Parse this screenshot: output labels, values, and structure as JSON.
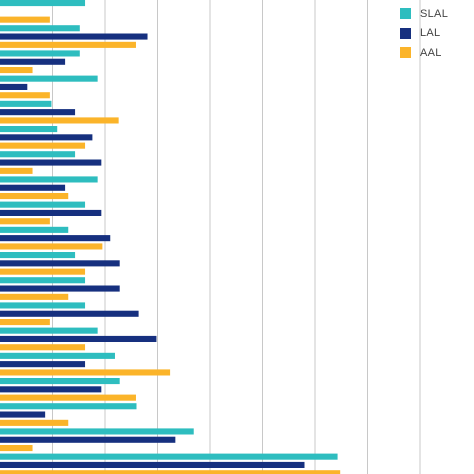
{
  "chart_data": {
    "type": "bar",
    "orientation": "horizontal",
    "title": "",
    "xlabel": "",
    "ylabel": "",
    "xlim": [
      0,
      8
    ],
    "grid": true,
    "legend_position": "top-right",
    "categories": [
      "",
      "",
      "",
      "",
      "",
      "",
      "",
      "",
      "",
      "",
      "",
      "",
      "",
      "",
      "",
      "",
      "",
      "",
      ""
    ],
    "series": [
      {
        "name": "SLAL",
        "color": "#2ebdbf",
        "values": [
          1.62,
          1.52,
          1.52,
          1.86,
          0.98,
          1.09,
          1.43,
          1.86,
          1.62,
          1.3,
          1.43,
          1.62,
          1.62,
          1.86,
          2.19,
          2.28,
          2.6,
          3.69,
          6.43
        ]
      },
      {
        "name": "LAL",
        "color": "#16307f",
        "values": [
          null,
          2.81,
          1.24,
          0.52,
          1.43,
          1.76,
          1.93,
          1.24,
          1.93,
          2.1,
          2.28,
          2.28,
          2.64,
          2.98,
          1.62,
          1.93,
          0.86,
          3.34,
          5.8
        ]
      },
      {
        "name": "AAL",
        "color": "#fbb42a",
        "values": [
          0.95,
          2.59,
          0.62,
          0.95,
          2.26,
          1.62,
          0.62,
          1.3,
          0.95,
          1.95,
          1.62,
          1.3,
          0.95,
          1.62,
          3.24,
          2.59,
          1.3,
          0.62,
          6.48
        ]
      }
    ]
  }
}
